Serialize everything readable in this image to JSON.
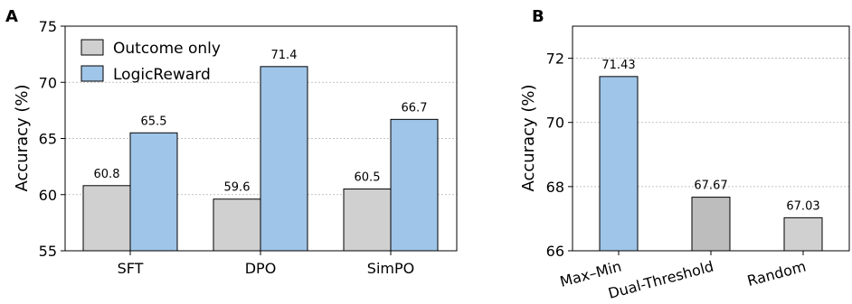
{
  "chart_data": [
    {
      "panel": "A",
      "type": "bar",
      "ylabel": "Accuracy (%)",
      "ylim": [
        55,
        75
      ],
      "yticks": [
        "55",
        "60",
        "65",
        "70",
        "75"
      ],
      "grid": "horizontal dotted",
      "legend_position": "upper-left",
      "categories": [
        "SFT",
        "DPO",
        "SimPO"
      ],
      "series": [
        {
          "name": "Outcome only",
          "color": "#d0d0d0",
          "values": [
            60.8,
            59.6,
            60.5
          ],
          "labels": [
            "60.8",
            "59.6",
            "60.5"
          ]
        },
        {
          "name": "LogicReward",
          "color": "#9fc5e8",
          "values": [
            65.5,
            71.4,
            66.7
          ],
          "labels": [
            "65.5",
            "71.4",
            "66.7"
          ]
        }
      ]
    },
    {
      "panel": "B",
      "type": "bar",
      "ylabel": "Accuracy (%)",
      "ylim": [
        66,
        73
      ],
      "yticks": [
        "66",
        "68",
        "70",
        "72"
      ],
      "grid": "horizontal dotted",
      "categories": [
        "Max–Min",
        "Dual-Threshold",
        "Random"
      ],
      "values": [
        71.43,
        67.67,
        67.03
      ],
      "labels": [
        "71.43",
        "67.67",
        "67.03"
      ],
      "colors": [
        "#9fc5e8",
        "#bdbdbd",
        "#d0d0d0"
      ]
    }
  ]
}
